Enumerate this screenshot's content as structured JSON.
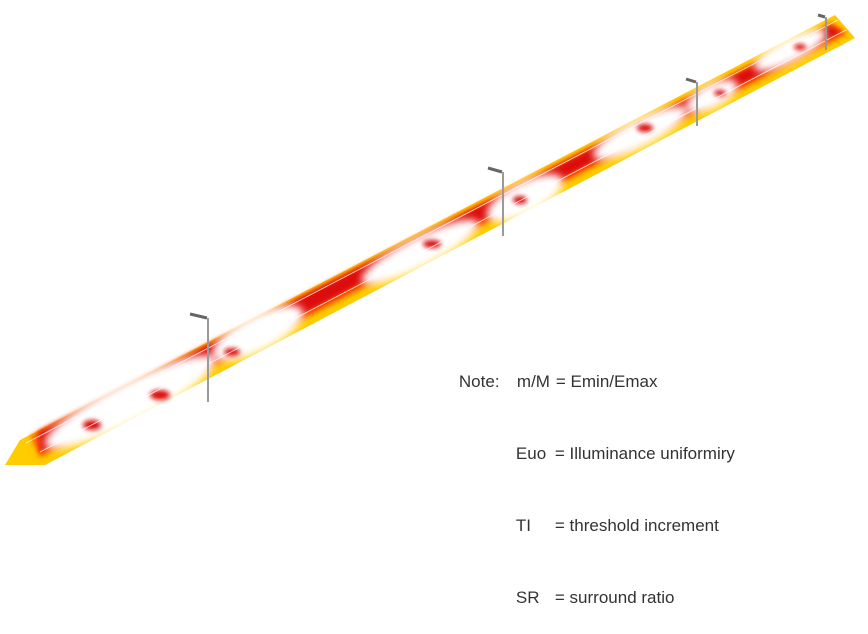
{
  "colors": {
    "outer": "#ffcc00",
    "mid": "#ff6600",
    "inner": "#dd1111",
    "highlight": "#ffffff",
    "pole": "#9a9a9a",
    "lamp_head": "#666666"
  },
  "note": {
    "prefix": "Note:",
    "items": [
      {
        "symbol": "m/M",
        "definition": "= Emin/Emax"
      },
      {
        "symbol": "Euo",
        "definition": "= Illuminance uniformiry"
      },
      {
        "symbol": "TI",
        "definition": "= threshold increment"
      },
      {
        "symbol": "SR",
        "definition": "= surround ratio"
      }
    ]
  }
}
